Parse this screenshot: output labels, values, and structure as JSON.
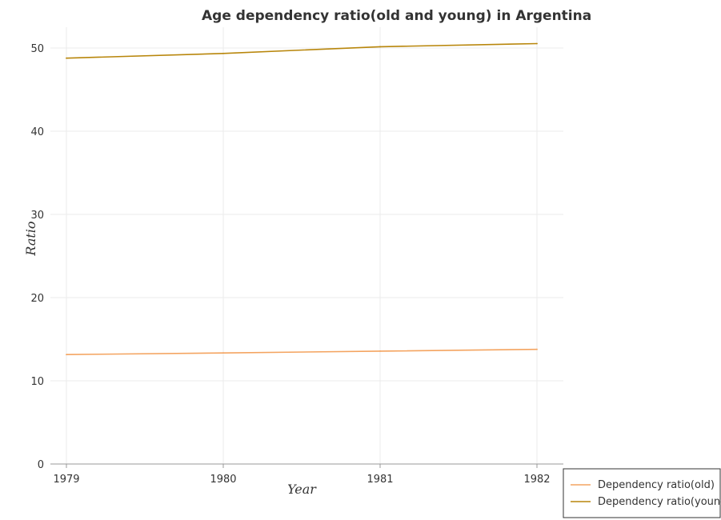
{
  "chart_data": {
    "type": "line",
    "title": "Age dependency ratio(old and young) in Argentina",
    "xlabel": "Year",
    "ylabel": "Ratio",
    "categories": [
      "1979",
      "1980",
      "1981",
      "1982"
    ],
    "ylim": [
      0,
      52.5
    ],
    "yticks": [
      "0",
      "10",
      "20",
      "30",
      "40",
      "50"
    ],
    "grid": true,
    "legend_position": "bottom-right",
    "series": [
      {
        "name": "Dependency ratio(old)",
        "color": "#f4a460",
        "values": [
          13.15,
          13.35,
          13.57,
          13.78
        ]
      },
      {
        "name": "Dependency ratio(young)",
        "color": "#b8860b",
        "values": [
          48.78,
          49.35,
          50.15,
          50.53
        ]
      }
    ]
  }
}
